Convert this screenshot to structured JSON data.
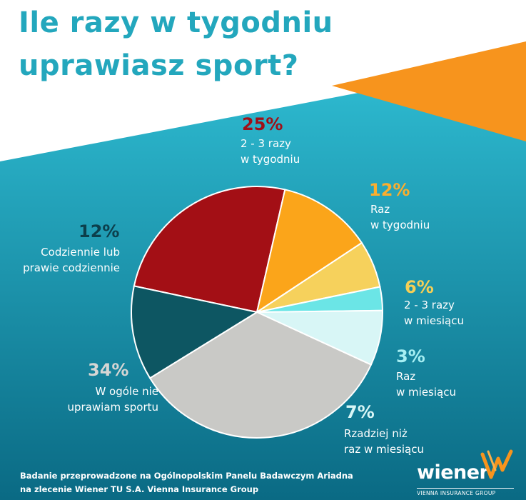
{
  "title": {
    "line1": "Ile razy w tygodniu",
    "line2": "uprawiasz sport?"
  },
  "colors": {
    "title": "#23a7bd",
    "background_top": "#2fbdd3",
    "background_bottom": "#0a6a84",
    "accent_orange": "#f7941d"
  },
  "chart_data": {
    "type": "pie",
    "title": "Ile razy w tygodniu uprawiasz sport?",
    "slices": [
      {
        "pct": "25%",
        "value": 25,
        "label_lines": [
          "2 - 3 razy",
          "w tygodniu"
        ],
        "color": "#a30f15",
        "label_color": "#a01018"
      },
      {
        "pct": "12%",
        "value": 12,
        "label_lines": [
          "Raz",
          "w tygodniu"
        ],
        "color": "#fba51a",
        "label_color": "#fbae2e"
      },
      {
        "pct": "6%",
        "value": 6,
        "label_lines": [
          "2 - 3 razy",
          "w miesiącu"
        ],
        "color": "#f6d15c",
        "label_color": "#f6cf55"
      },
      {
        "pct": "3%",
        "value": 3,
        "label_lines": [
          "Raz",
          "w miesiącu"
        ],
        "color": "#6be5e6",
        "label_color": "#a6eff3"
      },
      {
        "pct": "7%",
        "value": 7,
        "label_lines": [
          "Rzadziej niż",
          "raz w miesiącu"
        ],
        "color": "#d8f6f6",
        "label_color": "#d8f6f6"
      },
      {
        "pct": "34%",
        "value": 34,
        "label_lines": [
          "W ogóle nie",
          "uprawiam sportu"
        ],
        "color": "#c9c9c6",
        "label_color": "#d6d6d4"
      },
      {
        "pct": "12%",
        "value": 12,
        "label_lines": [
          "Codziennie lub",
          "prawie codziennie"
        ],
        "color": "#0d5662",
        "label_color": "#0c3f4c"
      }
    ]
  },
  "footnote": {
    "line1": "Badanie przeprowadzone na Ogólnopolskim Panelu Badawczym Ariadna",
    "line2": "na zlecenie Wiener TU S.A. Vienna Insurance Group"
  },
  "logo": {
    "wordmark": "wiener",
    "tagline": "VIENNA INSURANCE GROUP"
  }
}
